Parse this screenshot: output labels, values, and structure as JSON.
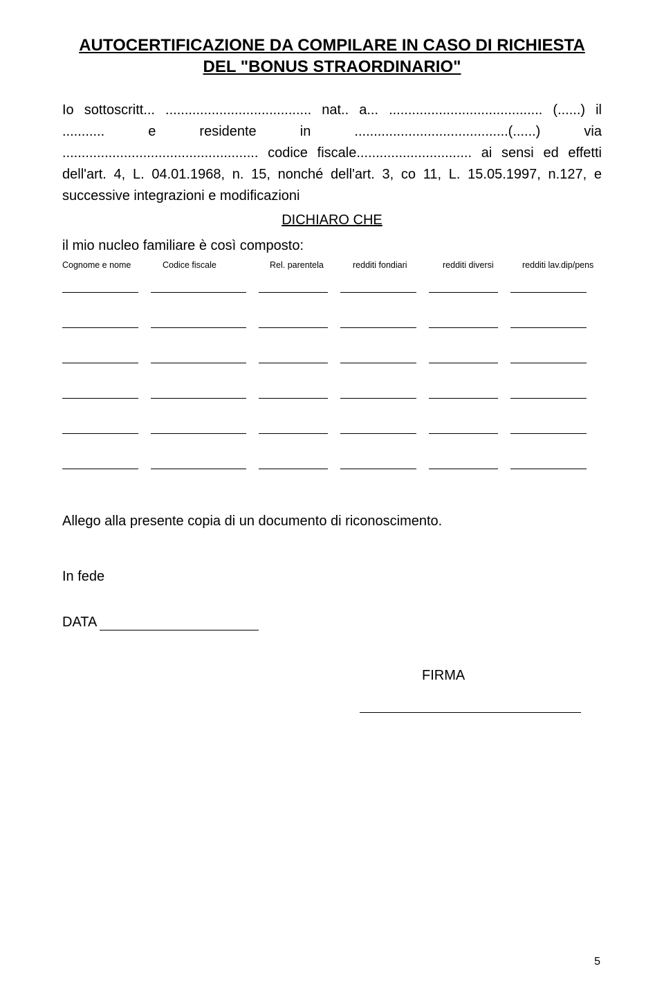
{
  "title": {
    "line1": "AUTOCERTIFICAZIONE DA COMPILARE IN CASO DI RICHIESTA",
    "line2": "DEL \"BONUS STRAORDINARIO\""
  },
  "body": {
    "paragraph": "Io sottoscritt... ...................................... nat.. a... ........................................ (......) il ........... e residente in ........................................(......) via ................................................... codice fiscale.............................. ai sensi ed effetti dell'art. 4, L. 04.01.1968, n. 15, nonché dell'art. 3, co 11, L. 15.05.1997, n.127, e successive integrazioni e modificazioni",
    "declare": "DICHIARO CHE",
    "composition": "il mio nucleo familiare è così composto:"
  },
  "table": {
    "headers": {
      "col1": "Cognome e nome",
      "col2": "Codice fiscale",
      "col3": "Rel. parentela",
      "col4": "redditi fondiari",
      "col5": "redditi diversi",
      "col6": "redditi lav.dip/pens"
    },
    "row_count": 6
  },
  "footer": {
    "allegato": "Allego alla presente copia di un documento di riconoscimento.",
    "infede": "In fede",
    "data_label": "DATA",
    "firma_label": "FIRMA",
    "page_number": "5"
  }
}
